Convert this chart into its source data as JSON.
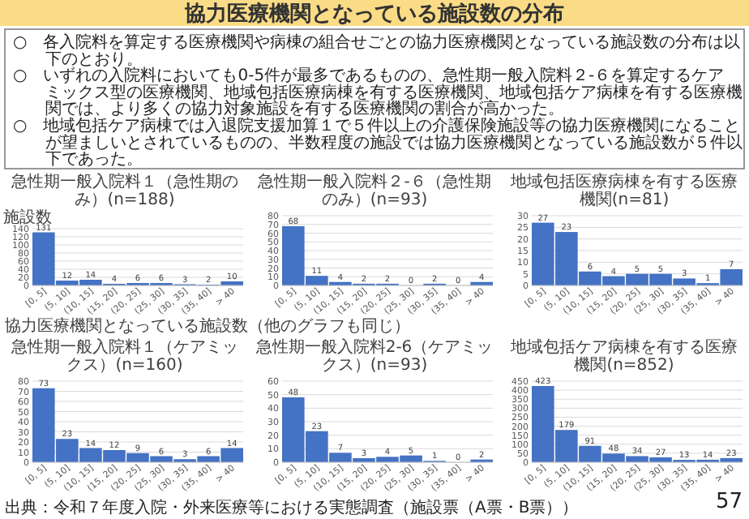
{
  "chart_data": [
    {
      "type": "other",
      "title": "協力医療機関となっている施設数の分布",
      "annotations": [
        "○　各入院料を算定する医療機関や病棟の組合せごとの協力医療機関となっている施設数の分布は以下のとおり。",
        "○　いずれの入院料においても0-5件が最多であるものの、急性期一般入院料２-６を算定するケアミックス型の医療機関、地域包括医療病棟を有する医療機関、地域包括ケア病棟を有する医療機関では、より多くの協力対象施設を有する医療機関の割合が高かった。",
        "○　地域包括ケア病棟では入退院支援加算１で５件以上の介護保険施設等の協力医療機関になることが望ましいとされているものの、半数程度の施設では協力医療機関となっている施設数が５件以下であった。",
        "出典：令和７年度入院・外来医療等における実態調査（施設票（A票・B票））",
        "57"
      ]
    },
    {
      "type": "bar",
      "title": "急性期一般入院料１（急性期のみ）(n=188)",
      "ylabel": "施設数",
      "xlabel": "協力医療機関となっている施設数（他のグラフも同じ）",
      "categories": [
        "[0, 5]",
        "(5, 10]",
        "(10, 15]",
        "(15, 20]",
        "(20, 25]",
        "(25, 30]",
        "(30, 35]",
        "(35, 40]",
        "> 40"
      ],
      "values": [
        131,
        12,
        14,
        4,
        6,
        6,
        3,
        2,
        10
      ],
      "color": "#4472c4",
      "ylim": [
        0,
        140
      ],
      "yticks": [
        0,
        20,
        40,
        60,
        80,
        100,
        120,
        140
      ],
      "grid": "y",
      "data_labels": true
    },
    {
      "type": "bar",
      "title": "急性期一般入院料２-６（急性期のみ）(n=93)",
      "categories": [
        "[0, 5]",
        "(5, 10]",
        "(10, 15]",
        "(15, 20]",
        "(20, 25]",
        "(25, 30]",
        "(30, 35]",
        "(35, 40]",
        "> 40"
      ],
      "values": [
        68,
        11,
        4,
        2,
        2,
        0,
        2,
        0,
        4
      ],
      "color": "#4472c4",
      "ylim": [
        0,
        80
      ],
      "yticks": [
        0,
        10,
        20,
        30,
        40,
        50,
        60,
        70,
        80
      ],
      "grid": "y",
      "data_labels": true
    },
    {
      "type": "bar",
      "title": "地域包括医療病棟を有する医療機関(n=81)",
      "categories": [
        "[0, 5]",
        "(5, 10]",
        "(10, 15]",
        "(15, 20]",
        "(20, 25]",
        "(25, 30]",
        "(30, 35]",
        "(35, 40]",
        "> 40"
      ],
      "values": [
        27,
        23,
        6,
        4,
        5,
        5,
        3,
        1,
        7
      ],
      "color": "#4472c4",
      "ylim": [
        0,
        30
      ],
      "yticks": [
        0,
        5,
        10,
        15,
        20,
        25,
        30
      ],
      "grid": "y",
      "data_labels": true
    },
    {
      "type": "bar",
      "title": "急性期一般入院料１（ケアミックス）(n=160)",
      "categories": [
        "[0, 5]",
        "(5, 10]",
        "(10, 15]",
        "(15, 20]",
        "(20, 25]",
        "(25, 30]",
        "(30, 35]",
        "(35, 40]",
        "> 40"
      ],
      "values": [
        73,
        23,
        14,
        12,
        9,
        6,
        3,
        6,
        14
      ],
      "color": "#4472c4",
      "ylim": [
        0,
        80
      ],
      "yticks": [
        0,
        10,
        20,
        30,
        40,
        50,
        60,
        70,
        80
      ],
      "grid": "y",
      "data_labels": true
    },
    {
      "type": "bar",
      "title": "急性期一般入院料2-6（ケアミックス）(n=93)",
      "categories": [
        "[0, 5]",
        "(5, 10]",
        "(10, 15]",
        "(15, 20]",
        "(20, 25]",
        "(25, 30]",
        "(30, 35]",
        "(35, 40]",
        "> 40"
      ],
      "values": [
        48,
        23,
        7,
        3,
        4,
        5,
        1,
        0,
        2
      ],
      "color": "#4472c4",
      "ylim": [
        0,
        60
      ],
      "yticks": [
        0,
        10,
        20,
        30,
        40,
        50,
        60
      ],
      "grid": "y",
      "data_labels": true
    },
    {
      "type": "bar",
      "title": "地域包括ケア病棟を有する医療機関(n=852)",
      "categories": [
        "[0, 5]",
        "(5, 10]",
        "(10, 15]",
        "(15, 20]",
        "(20, 25]",
        "(25, 30]",
        "(30, 35]",
        "(35, 40]",
        "> 40"
      ],
      "values": [
        423,
        179,
        91,
        48,
        34,
        27,
        13,
        14,
        23
      ],
      "color": "#4472c4",
      "ylim": [
        0,
        450
      ],
      "yticks": [
        0,
        50,
        100,
        150,
        200,
        250,
        300,
        350,
        400,
        450
      ],
      "grid": "y",
      "data_labels": true
    }
  ]
}
